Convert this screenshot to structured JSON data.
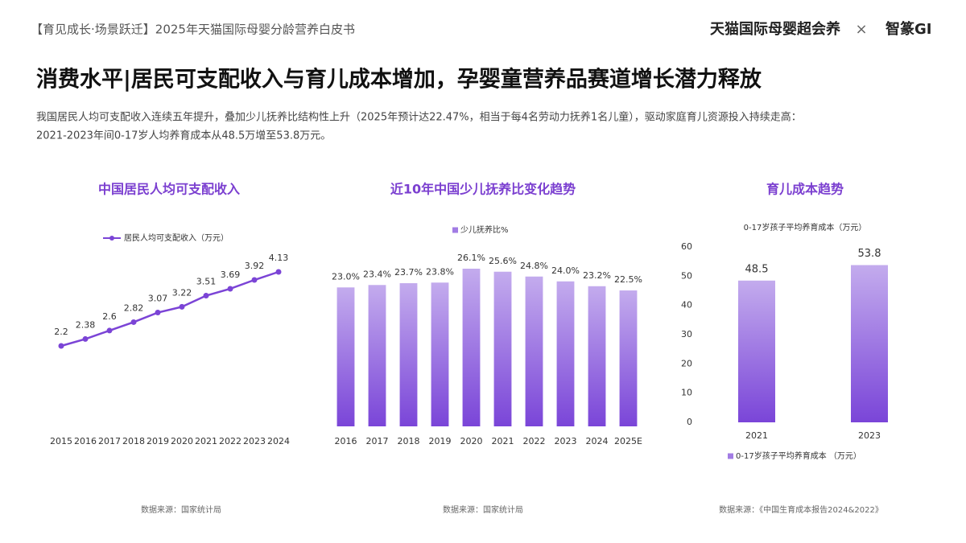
{
  "header": {
    "report": "【育见成长·场景跃迁】2025年天猫国际母婴分龄营养白皮书",
    "brand": "天猫国际母婴超会养",
    "times": "×",
    "partner": "智篆GI"
  },
  "title": "消费水平|居民可支配收入与育儿成本增加，孕婴童营养品赛道增长潜力释放",
  "description": [
    "我国居民人均可支配收入连续五年提升，叠加少儿抚养比结构性上升（2025年预计达22.47%，相当于每4名劳动力抚养1名儿童），驱动家庭育儿资源投入持续走高：",
    "2021-2023年间0-17岁人均养育成本从48.5万增至53.8万元。"
  ],
  "chart_data": [
    {
      "type": "line",
      "title": "中国居民人均可支配收入",
      "categories": [
        "2015",
        "2016",
        "2017",
        "2018",
        "2019",
        "2020",
        "2021",
        "2022",
        "2023",
        "2024"
      ],
      "series": [
        {
          "name": "居民人均可支配收入（万元）",
          "color": "#7b44d6",
          "values": [
            2.2,
            2.38,
            2.6,
            2.82,
            3.07,
            3.22,
            3.51,
            3.69,
            3.92,
            4.13
          ]
        }
      ],
      "source": "数据来源：国家统计局"
    },
    {
      "type": "bar",
      "title": "近10年中国少儿抚养比变化趋势",
      "categories": [
        "2016",
        "2017",
        "2018",
        "2019",
        "2020",
        "2021",
        "2022",
        "2023",
        "2024",
        "2025E"
      ],
      "series": [
        {
          "name": "少儿抚养比%",
          "color": "#7a45d8",
          "values": [
            23.0,
            23.4,
            23.7,
            23.8,
            26.1,
            25.6,
            24.8,
            24.0,
            23.2,
            22.5
          ],
          "value_labels": [
            "23.0%",
            "23.4%",
            "23.7%",
            "23.8%",
            "26.1%",
            "25.6%",
            "24.8%",
            "24.0%",
            "23.2%",
            "22.5%"
          ]
        }
      ],
      "source": "数据来源：国家统计局"
    },
    {
      "type": "bar",
      "title": "育儿成本趋势",
      "y_label": "0-17岁孩子平均养育成本（万元）",
      "categories": [
        "2021",
        "2023"
      ],
      "series": [
        {
          "name": "0-17岁孩子平均养育成本 （万元）",
          "color": "#7a45d8",
          "values": [
            48.5,
            53.8
          ]
        }
      ],
      "ylim": [
        0,
        60
      ],
      "yticks": [
        0,
        10,
        20,
        30,
        40,
        50,
        60
      ],
      "source": "数据来源：《中国生育成本报告2024&2022》"
    }
  ]
}
